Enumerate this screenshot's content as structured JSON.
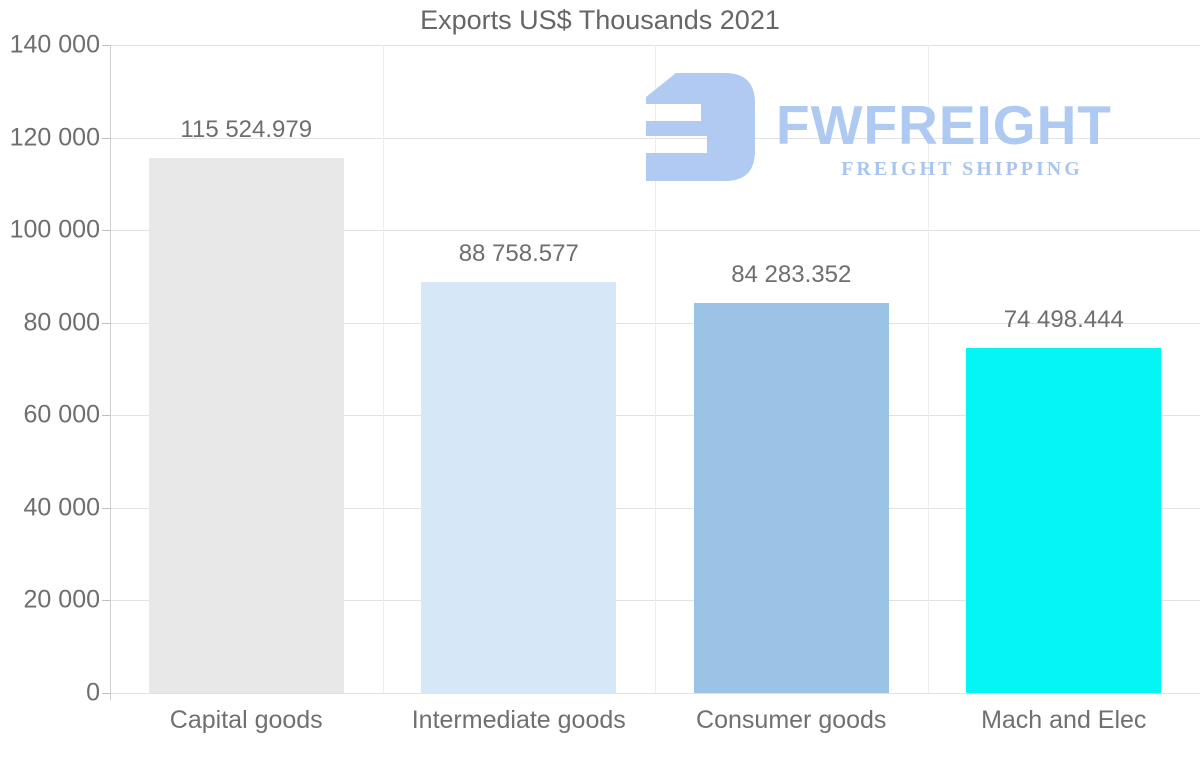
{
  "title": "Exports US$ Thousands 2021",
  "watermark": {
    "brand": "FWFREIGHT",
    "tagline": "FREIGHT SHIPPING",
    "brand_color": "#a9c6f1",
    "tagline_color": "#a2c0ee",
    "icon_color": "#aac6f0",
    "icon_name": "fwfreight-logo-icon"
  },
  "chart_data": {
    "type": "bar",
    "title": "Exports US$ Thousands 2021",
    "categories": [
      "Capital goods",
      "Intermediate goods",
      "Consumer goods",
      "Mach and Elec"
    ],
    "values": [
      115524.979,
      88758.577,
      84283.352,
      74498.444
    ],
    "value_labels": [
      "115 524.979",
      "88 758.577",
      "84 283.352",
      "74 498.444"
    ],
    "bar_colors": [
      "#e8e8e8",
      "#d6e8f8",
      "#9ac3e5",
      "#05f5f5"
    ],
    "xlabel": "",
    "ylabel": "",
    "ylim": [
      0,
      140000
    ],
    "ytick_step": 20000,
    "ytick_labels": [
      "0",
      "20 000",
      "40 000",
      "60 000",
      "80 000",
      "100 000",
      "120 000",
      "140 000"
    ],
    "grid": true,
    "legend_position": "none",
    "axis_text_color": "#6e6e6e",
    "gridline_color": "#e2e2e2"
  }
}
